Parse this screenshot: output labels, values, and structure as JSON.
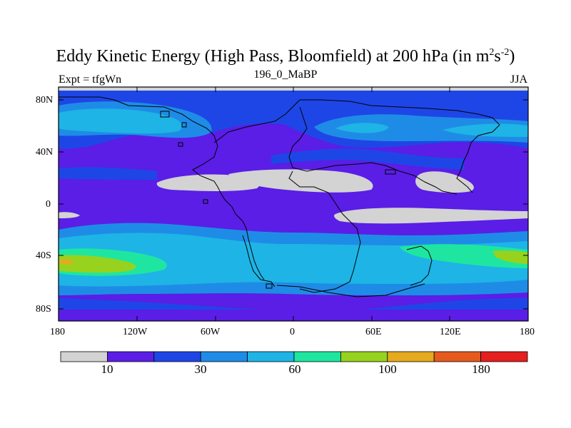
{
  "title": {
    "main": "Eddy Kinetic Energy (High Pass, Bloomfield) at 200 hPa (in m",
    "sup1": "2",
    "mid": "s",
    "sup2": "-2",
    "end": ")"
  },
  "center_subtitle": "196_0_MaBP",
  "left_subtitle": "Expt = tfgWn",
  "right_subtitle": "JJA",
  "lat_labels": [
    "80N",
    "40N",
    "0",
    "40S",
    "80S"
  ],
  "lon_labels": [
    "180",
    "120W",
    "60W",
    "0",
    "60E",
    "120E",
    "180"
  ],
  "colorbar": {
    "colors": [
      "#d3d3d3",
      "#5a1ee6",
      "#1e46e6",
      "#1e8ce6",
      "#1eb4e6",
      "#1ee6a0",
      "#96d21e",
      "#e6aa1e",
      "#e65a1e",
      "#e61e1e"
    ],
    "labels": [
      "10",
      "30",
      "60",
      "100",
      "180"
    ]
  },
  "field_colors": {
    "gray": "#d3d3d3",
    "violet": "#5a1ee6",
    "blue": "#1e46e6",
    "mid_blue": "#1e8ce6",
    "cyan": "#1eb4e6",
    "green": "#1ee6a0",
    "yellowgreen": "#96d21e",
    "orange": "#e6aa1e"
  }
}
